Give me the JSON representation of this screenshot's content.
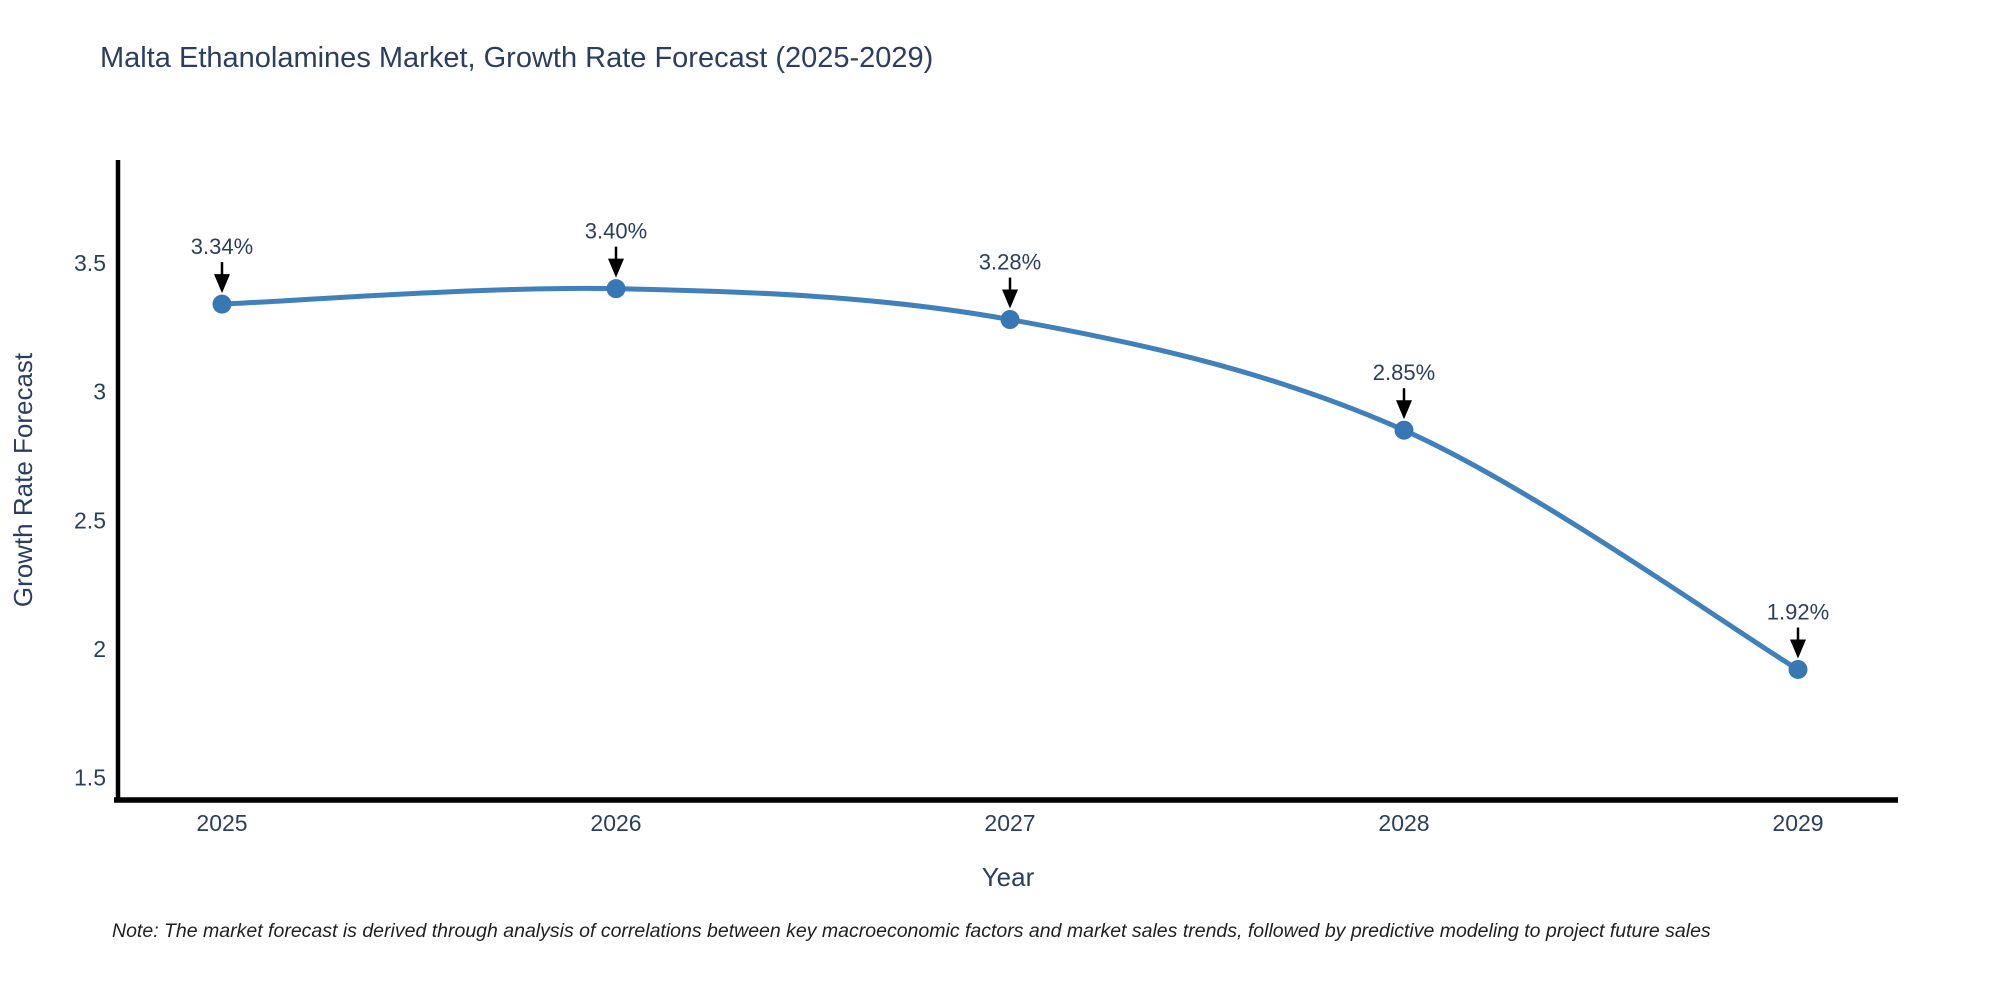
{
  "title": "Malta Ethanolamines Market, Growth Rate Forecast (2025-2029)",
  "note": "Note: The market forecast is derived through analysis of correlations between key macroeconomic factors and market sales trends, followed by predictive modeling to project future sales",
  "chart_data": {
    "type": "line",
    "line_shape": "spline",
    "x": [
      2025,
      2026,
      2027,
      2028,
      2029
    ],
    "xtick_labels": [
      "2025",
      "2026",
      "2027",
      "2028",
      "2029"
    ],
    "values": [
      3.34,
      3.4,
      3.28,
      2.85,
      1.92
    ],
    "point_labels": [
      "3.34%",
      "3.40%",
      "3.28%",
      "2.85%",
      "1.92%"
    ],
    "title": "Malta Ethanolamines Market, Growth Rate Forecast (2025-2029)",
    "xlabel": "Year",
    "ylabel": "Growth Rate Forecast",
    "yticks": [
      3.5,
      3,
      2.5,
      2,
      1.5
    ],
    "ytick_labels": [
      "3.5",
      "3",
      "2.5",
      "2",
      "1.5"
    ],
    "ylim": [
      1.413,
      3.9
    ],
    "grid": false,
    "legend": "none",
    "colors": {
      "line": "#4181bb",
      "marker": "#3876b4",
      "arrow": "#000000",
      "axis": "#000000",
      "text": "#2a3f5f"
    }
  }
}
